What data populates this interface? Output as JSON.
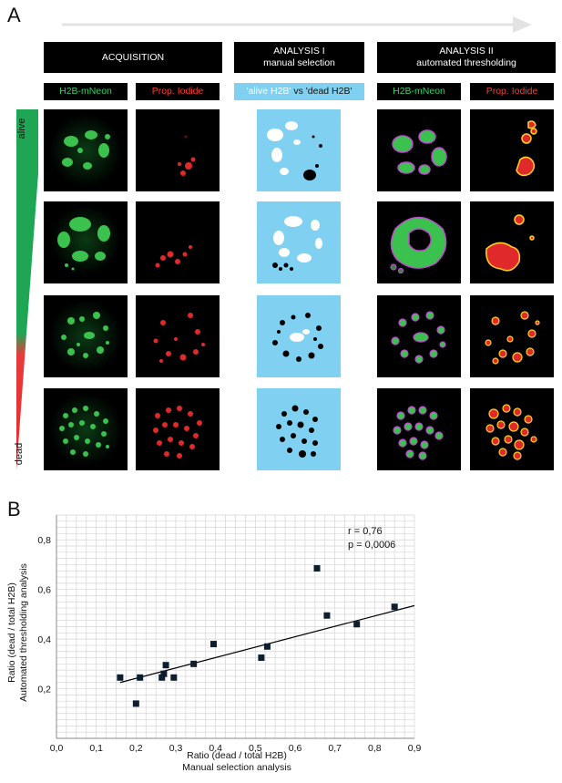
{
  "panel_a": {
    "letter": "A",
    "headers": {
      "acquisition": "ACQUISITION",
      "analysis1_title": "ANALYSIS I",
      "analysis1_sub": "manual selection",
      "analysis2_title": "ANALYSIS II",
      "analysis2_sub": "automated thresholding"
    },
    "subheaders": {
      "h2b": "H2B-mNeon",
      "pi": "Prop. Iodide",
      "alive_part": "'alive H2B'",
      "vs": " vs ",
      "dead_part": "'dead H2B'",
      "h2b2": "H2B-mNeon",
      "pi2": "Prop. Iodide"
    },
    "gradient_labels": {
      "top": "alive",
      "bottom": "dead"
    },
    "colors": {
      "green": "#2ed36b",
      "red": "#ff3b30",
      "blue_bg": "#7fd0f1",
      "outline_magenta": "#c04bd0",
      "outline_yellow": "#ffd21f"
    }
  },
  "panel_b": {
    "letter": "B",
    "stats_r": "r = 0,76",
    "stats_p": "p = 0,0006",
    "ylabel_line1": "Ratio (dead /  total H2B)",
    "ylabel_line2": "Automated thresholding analysis",
    "xlabel_line1": "Ratio (dead / total H2B)",
    "xlabel_line2": "Manual selection analysis"
  },
  "chart_data": {
    "type": "scatter",
    "xlim": [
      0.0,
      0.9
    ],
    "ylim": [
      0.0,
      0.9
    ],
    "x_ticks": [
      "0,0",
      "0,1",
      "0,2",
      "0,3",
      "0,4",
      "0,5",
      "0,6",
      "0,7",
      "0,8",
      "0,9"
    ],
    "y_ticks": [
      "0,2",
      "0,4",
      "0,6",
      "0,8"
    ],
    "grid": true,
    "points": [
      {
        "x": 0.16,
        "y": 0.245
      },
      {
        "x": 0.2,
        "y": 0.14
      },
      {
        "x": 0.21,
        "y": 0.245
      },
      {
        "x": 0.265,
        "y": 0.245
      },
      {
        "x": 0.27,
        "y": 0.26
      },
      {
        "x": 0.275,
        "y": 0.295
      },
      {
        "x": 0.295,
        "y": 0.245
      },
      {
        "x": 0.345,
        "y": 0.3
      },
      {
        "x": 0.395,
        "y": 0.38
      },
      {
        "x": 0.515,
        "y": 0.325
      },
      {
        "x": 0.53,
        "y": 0.37
      },
      {
        "x": 0.655,
        "y": 0.685
      },
      {
        "x": 0.68,
        "y": 0.495
      },
      {
        "x": 0.755,
        "y": 0.46
      },
      {
        "x": 0.85,
        "y": 0.53
      }
    ],
    "fit_line": {
      "x": [
        0.16,
        0.9
      ],
      "y": [
        0.225,
        0.535
      ]
    },
    "marker_color": "#0f1e2e"
  }
}
